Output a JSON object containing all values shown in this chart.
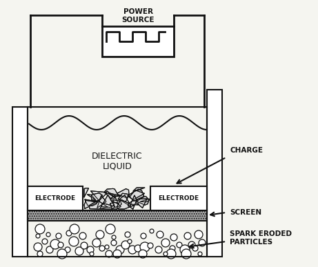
{
  "bg_color": "#f5f5f0",
  "line_color": "#111111",
  "title": "POWER\nSOURCE",
  "labels": {
    "dielectric": "DIELECTRIC\nLIQUID",
    "charge": "CHARGE",
    "electrode_left": "ELECTRODE",
    "electrode_right": "ELECTRODE",
    "screen": "SCREEN",
    "spark": "SPARK ERODED\nPARTICLES"
  },
  "fig_width": 4.61,
  "fig_height": 3.87,
  "dpi": 100
}
